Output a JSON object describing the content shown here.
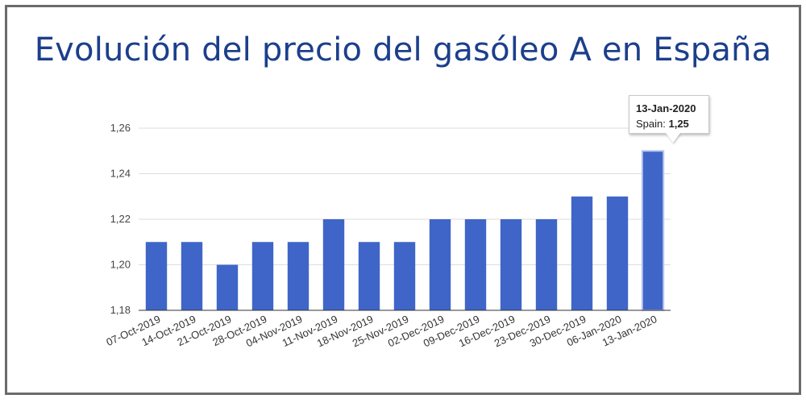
{
  "title": "Evolución del precio del gasóleo A en España",
  "colors": {
    "bar": "#3f65c8",
    "bar_highlight": "#3f65c8",
    "title": "#1c3f8c",
    "grid": "#dddddd",
    "axis": "#333333"
  },
  "tooltip": {
    "date": "13-Jan-2020",
    "series_label": "Spain: ",
    "value_label": "1,25"
  },
  "chart_data": {
    "type": "bar",
    "title": "Evolución del precio del gasóleo A en España",
    "xlabel": "",
    "ylabel": "",
    "ylim": [
      1.18,
      1.26
    ],
    "yticks": [
      1.18,
      1.2,
      1.22,
      1.24,
      1.26
    ],
    "ytick_labels": [
      "1,18",
      "1,20",
      "1,22",
      "1,24",
      "1,26"
    ],
    "grid": true,
    "legend": "none",
    "categories": [
      "07-Oct-2019",
      "14-Oct-2019",
      "21-Oct-2019",
      "28-Oct-2019",
      "04-Nov-2019",
      "11-Nov-2019",
      "18-Nov-2019",
      "25-Nov-2019",
      "02-Dec-2019",
      "09-Dec-2019",
      "16-Dec-2019",
      "23-Dec-2019",
      "30-Dec-2019",
      "06-Jan-2020",
      "13-Jan-2020"
    ],
    "series": [
      {
        "name": "Spain",
        "values": [
          1.21,
          1.21,
          1.2,
          1.21,
          1.21,
          1.22,
          1.21,
          1.21,
          1.22,
          1.22,
          1.22,
          1.22,
          1.23,
          1.23,
          1.25
        ]
      }
    ],
    "highlighted_category": "13-Jan-2020"
  }
}
